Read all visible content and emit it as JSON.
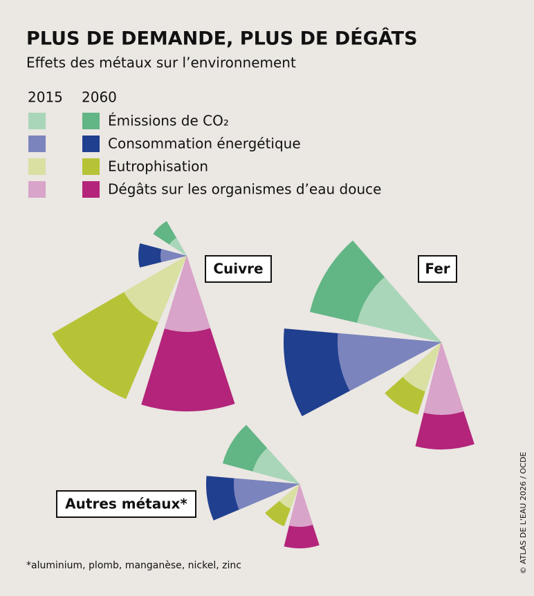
{
  "title": "PLUS DE DEMANDE, PLUS DE DÉGÂTS",
  "subtitle": "Effets des métaux sur l’environnement",
  "footnote": "*aluminium, plomb, manganèse, nickel, zinc",
  "source": "© ATLAS DE L'EAU 2026 / OCDE",
  "chart_data": [
    {
      "type": "polar",
      "title": "Cuivre",
      "categories": [
        "Émissions de CO₂",
        "Consommation énergétique",
        "Eutrophisation",
        "Dégâts sur les organismes d’eau douce"
      ],
      "series": [
        {
          "name": "2015",
          "colors": [
            "#a9d6b9",
            "#7b84bd",
            "#d9e0a2",
            "#d9a4c9"
          ],
          "values": [
            30,
            38,
            105,
            110
          ]
        },
        {
          "name": "2060",
          "colors": [
            "#62b585",
            "#203f8e",
            "#b6c337",
            "#b3247a"
          ],
          "values": [
            58,
            70,
            225,
            225
          ]
        }
      ]
    },
    {
      "type": "polar",
      "title": "Fer",
      "series": [
        {
          "values": [
            125,
            150,
            75,
            105
          ]
        },
        {
          "values": [
            195,
            228,
            110,
            155
          ]
        }
      ]
    },
    {
      "type": "polar",
      "title": "Autres métaux*",
      "series": [
        {
          "values": [
            70,
            95,
            38,
            62
          ]
        },
        {
          "values": [
            115,
            135,
            65,
            93
          ]
        }
      ]
    }
  ]
}
